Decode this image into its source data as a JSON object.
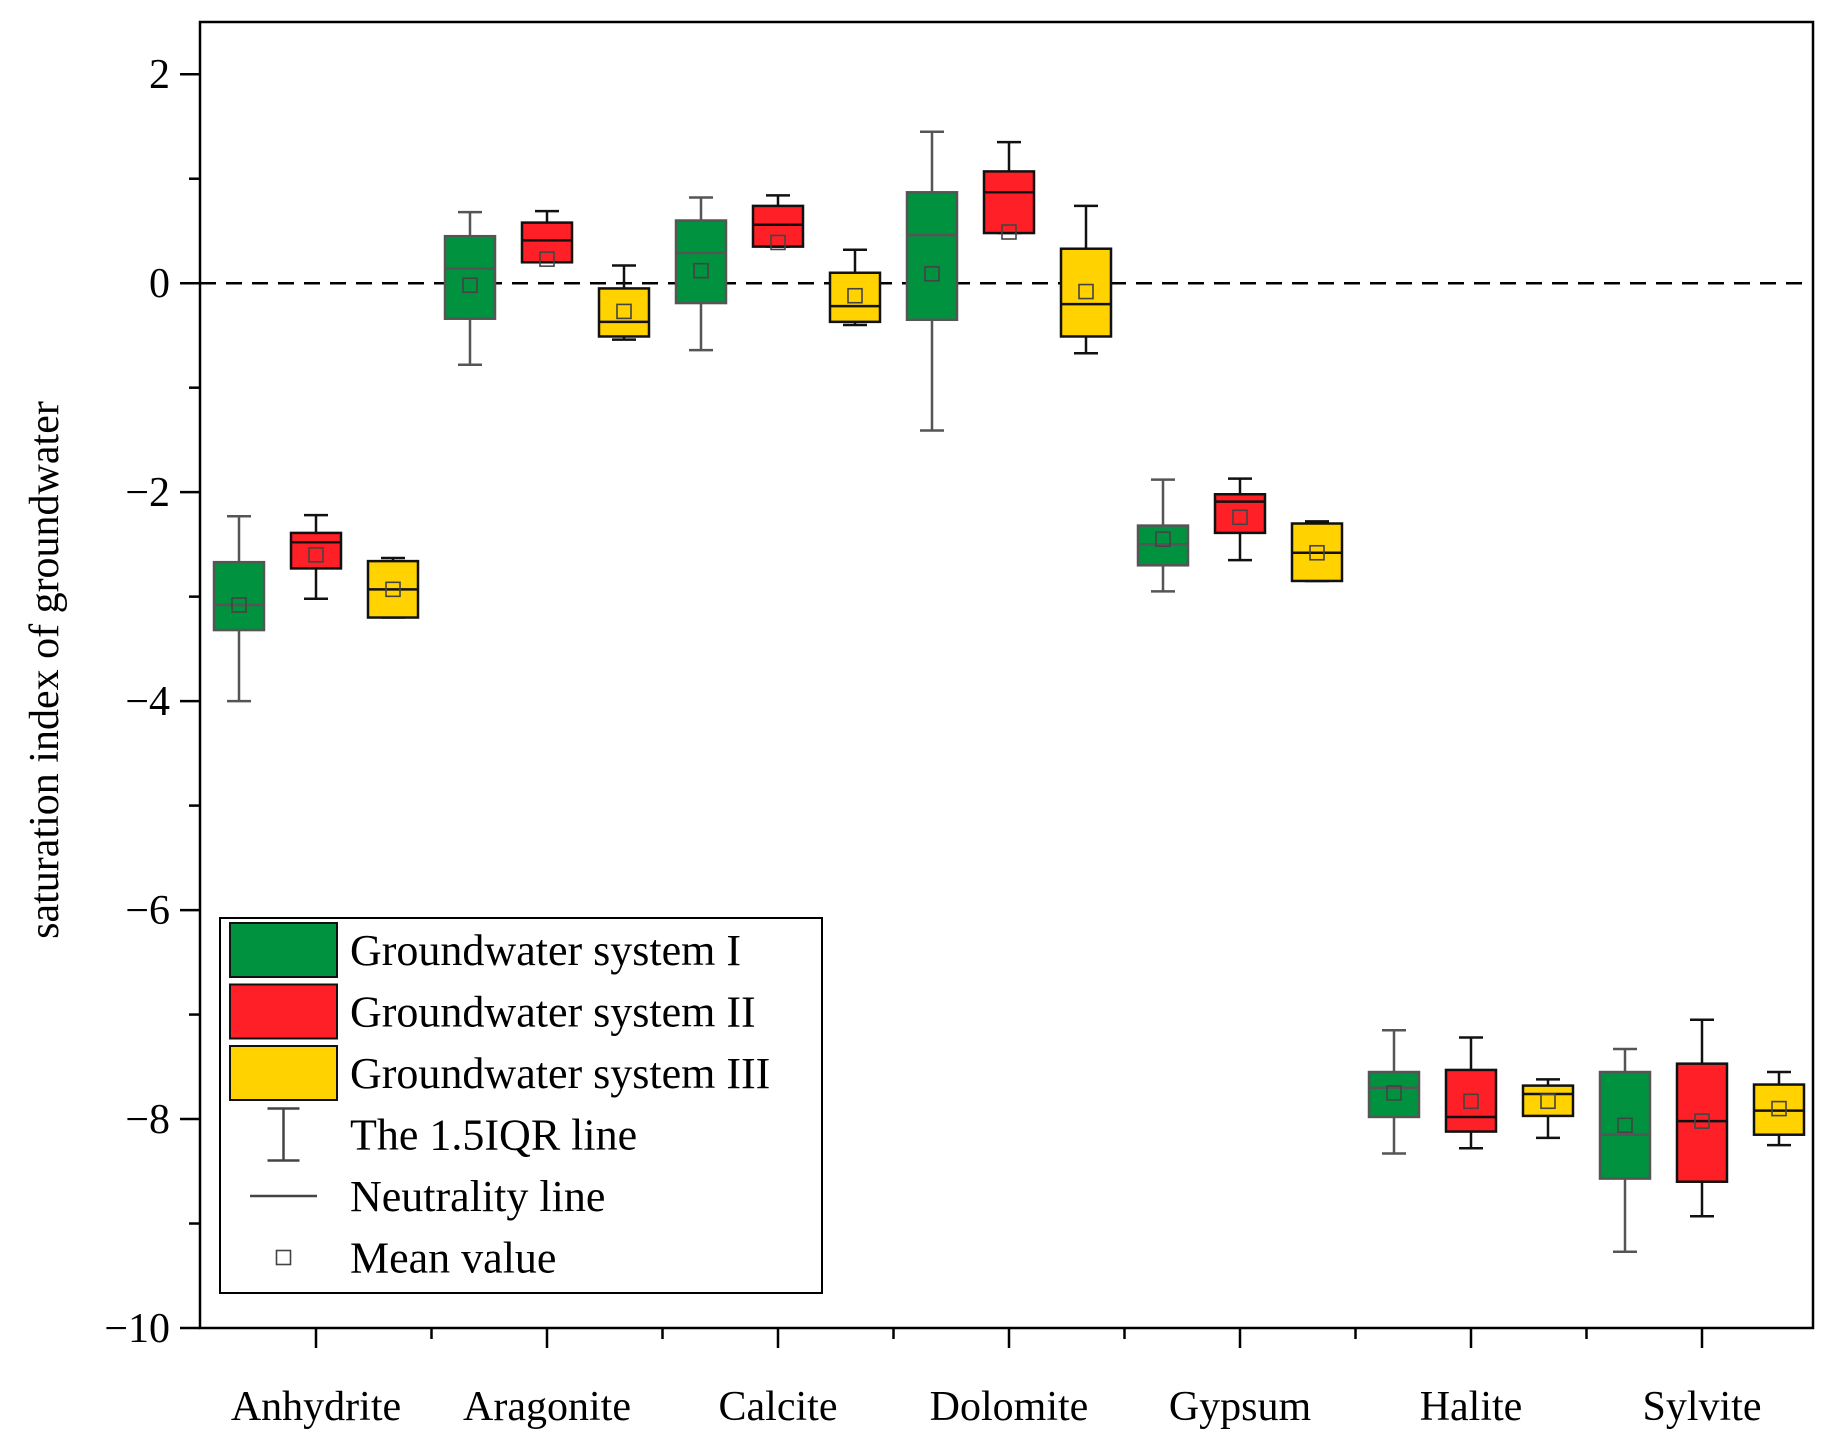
{
  "chart_data": {
    "type": "box",
    "ylabel": "saturation index of groundwater",
    "xlabel": "",
    "ylim": [
      -10,
      2.5
    ],
    "yticks": [
      -10,
      -8,
      -6,
      -4,
      -2,
      0,
      2
    ],
    "ytick_labels": [
      "−10",
      "−8",
      "−6",
      "−4",
      "−2",
      "0",
      "2"
    ],
    "categories": [
      "Anhydrite",
      "Aragonite",
      "Calcite",
      "Dolomite",
      "Gypsum",
      "Halite",
      "Sylvite"
    ],
    "reference_line": {
      "y": 0,
      "style": "dashed"
    },
    "series": [
      {
        "name": "Groundwater system I",
        "color": "#00923F",
        "edge": "#555555",
        "boxes": [
          {
            "whisker_low": -4.0,
            "q1": -3.32,
            "median": -3.08,
            "q3": -2.67,
            "whisker_high": -2.23,
            "mean": -3.08
          },
          {
            "whisker_low": -0.78,
            "q1": -0.34,
            "median": 0.14,
            "q3": 0.45,
            "whisker_high": 0.68,
            "mean": -0.02
          },
          {
            "whisker_low": -0.64,
            "q1": -0.19,
            "median": 0.29,
            "q3": 0.6,
            "whisker_high": 0.82,
            "mean": 0.12
          },
          {
            "whisker_low": -1.41,
            "q1": -0.35,
            "median": 0.46,
            "q3": 0.87,
            "whisker_high": 1.45,
            "mean": 0.09
          },
          {
            "whisker_low": -2.95,
            "q1": -2.7,
            "median": -2.5,
            "q3": -2.32,
            "whisker_high": -1.88,
            "mean": -2.45
          },
          {
            "whisker_low": -8.33,
            "q1": -7.98,
            "median": -7.7,
            "q3": -7.55,
            "whisker_high": -7.15,
            "mean": -7.75
          },
          {
            "whisker_low": -9.27,
            "q1": -8.57,
            "median": -8.15,
            "q3": -7.55,
            "whisker_high": -7.33,
            "mean": -8.06
          }
        ]
      },
      {
        "name": "Groundwater system II",
        "color": "#FF1F26",
        "edge": "#111111",
        "boxes": [
          {
            "whisker_low": -3.02,
            "q1": -2.73,
            "median": -2.48,
            "q3": -2.39,
            "whisker_high": -2.22,
            "mean": -2.6
          },
          {
            "whisker_low": 0.2,
            "q1": 0.2,
            "median": 0.41,
            "q3": 0.58,
            "whisker_high": 0.69,
            "mean": 0.23
          },
          {
            "whisker_low": 0.35,
            "q1": 0.35,
            "median": 0.56,
            "q3": 0.74,
            "whisker_high": 0.84,
            "mean": 0.39
          },
          {
            "whisker_low": 0.48,
            "q1": 0.48,
            "median": 0.87,
            "q3": 1.07,
            "whisker_high": 1.35,
            "mean": 0.49
          },
          {
            "whisker_low": -2.65,
            "q1": -2.39,
            "median": -2.09,
            "q3": -2.02,
            "whisker_high": -1.87,
            "mean": -2.24
          },
          {
            "whisker_low": -8.28,
            "q1": -8.12,
            "median": -7.98,
            "q3": -7.53,
            "whisker_high": -7.22,
            "mean": -7.83
          },
          {
            "whisker_low": -8.93,
            "q1": -8.6,
            "median": -8.02,
            "q3": -7.47,
            "whisker_high": -7.05,
            "mean": -8.02
          }
        ]
      },
      {
        "name": "Groundwater system III",
        "color": "#FFD200",
        "edge": "#111111",
        "boxes": [
          {
            "whisker_low": -3.2,
            "q1": -3.2,
            "median": -2.93,
            "q3": -2.66,
            "whisker_high": -2.63,
            "mean": -2.93
          },
          {
            "whisker_low": -0.54,
            "q1": -0.51,
            "median": -0.37,
            "q3": -0.05,
            "whisker_high": 0.17,
            "mean": -0.27
          },
          {
            "whisker_low": -0.4,
            "q1": -0.37,
            "median": -0.22,
            "q3": 0.1,
            "whisker_high": 0.32,
            "mean": -0.12
          },
          {
            "whisker_low": -0.67,
            "q1": -0.51,
            "median": -0.2,
            "q3": 0.33,
            "whisker_high": 0.74,
            "mean": -0.08
          },
          {
            "whisker_low": -2.85,
            "q1": -2.85,
            "median": -2.58,
            "q3": -2.3,
            "whisker_high": -2.28,
            "mean": -2.58
          },
          {
            "whisker_low": -8.18,
            "q1": -7.97,
            "median": -7.76,
            "q3": -7.68,
            "whisker_high": -7.62,
            "mean": -7.83
          },
          {
            "whisker_low": -8.25,
            "q1": -8.15,
            "median": -7.92,
            "q3": -7.67,
            "whisker_high": -7.55,
            "mean": -7.9
          }
        ]
      }
    ],
    "legend": {
      "placement": "bottom-left",
      "items": [
        {
          "label": "Groundwater system I",
          "kind": "box",
          "color": "#00923F"
        },
        {
          "label": "Groundwater system II",
          "kind": "box",
          "color": "#FF1F26"
        },
        {
          "label": "Groundwater system III",
          "kind": "box",
          "color": "#FFD200"
        },
        {
          "label": "The 1.5IQR line",
          "kind": "whisker"
        },
        {
          "label": "Neutrality line",
          "kind": "line"
        },
        {
          "label": "Mean value",
          "kind": "mean"
        }
      ]
    }
  }
}
